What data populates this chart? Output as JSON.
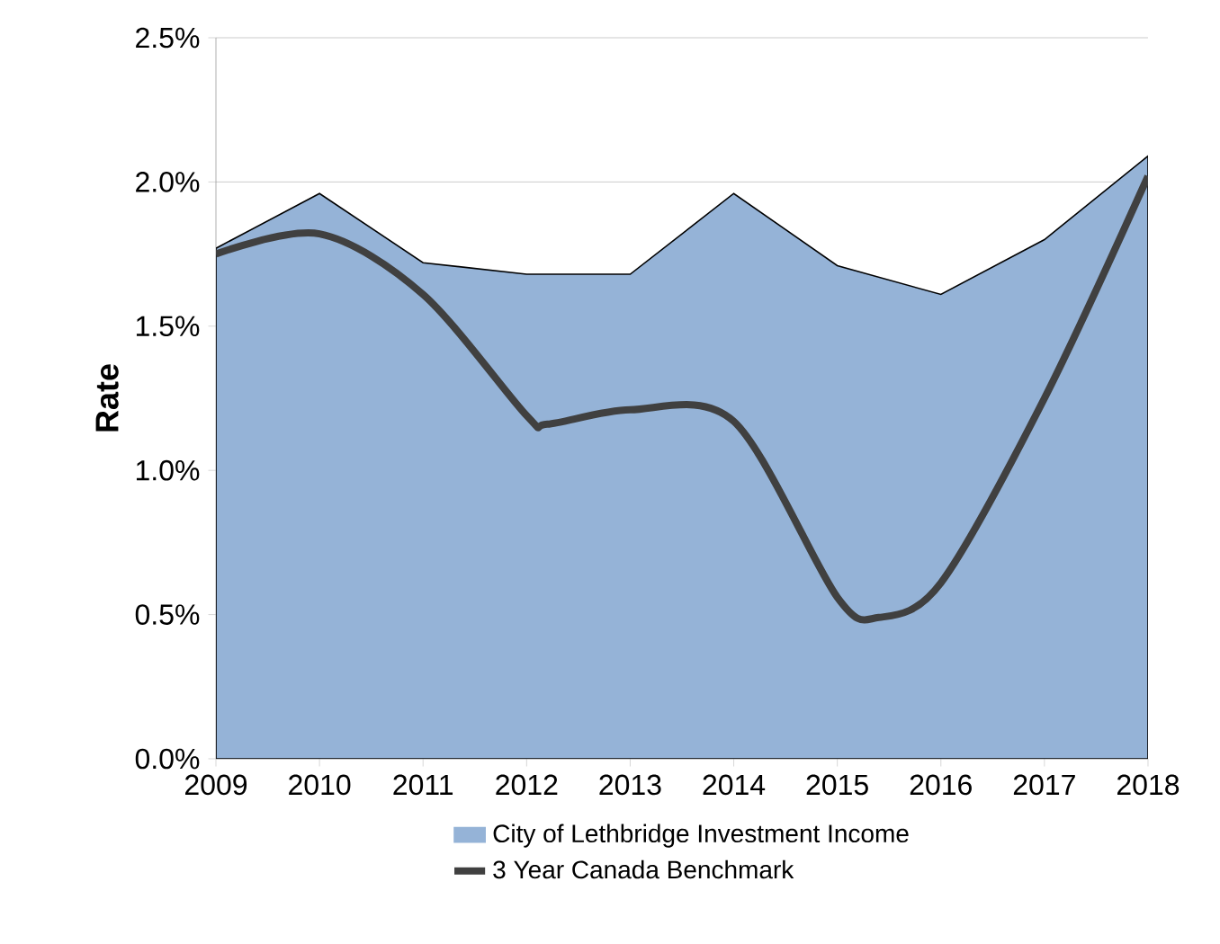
{
  "chart_data": {
    "type": "area",
    "ylabel": "Rate",
    "xlim": [
      2009,
      2018
    ],
    "xticks": [
      2009,
      2010,
      2011,
      2012,
      2013,
      2014,
      2015,
      2016,
      2017,
      2018
    ],
    "ylim": [
      0,
      2.5
    ],
    "yticks": [
      {
        "value": 0,
        "label": "0.0%"
      },
      {
        "value": 0.5,
        "label": "0.5%"
      },
      {
        "value": 1,
        "label": "1.0%"
      },
      {
        "value": 1.5,
        "label": "1.5%"
      },
      {
        "value": 2,
        "label": "2.0%"
      },
      {
        "value": 2.5,
        "label": "2.5%"
      }
    ],
    "grid": "y",
    "legend": "bottom",
    "series": [
      {
        "name": "City of Lethbridge Investment Income",
        "color": "#95b3d7",
        "x": [
          2009,
          2010,
          2011,
          2012,
          2013,
          2014,
          2015,
          2016,
          2017,
          2018
        ],
        "values": [
          1.77,
          1.96,
          1.72,
          1.68,
          1.68,
          1.96,
          1.71,
          1.61,
          1.8,
          2.09
        ]
      },
      {
        "name": "3 Year Canada Benchmark",
        "type": "line",
        "color": "#404040",
        "x": [
          2009,
          2010,
          2011,
          2012,
          2012.2,
          2013,
          2014,
          2015,
          2015.4,
          2016,
          2017,
          2018
        ],
        "values": [
          1.75,
          1.82,
          1.61,
          1.19,
          1.16,
          1.21,
          1.17,
          0.56,
          0.49,
          0.61,
          1.25,
          2.02
        ]
      }
    ]
  }
}
